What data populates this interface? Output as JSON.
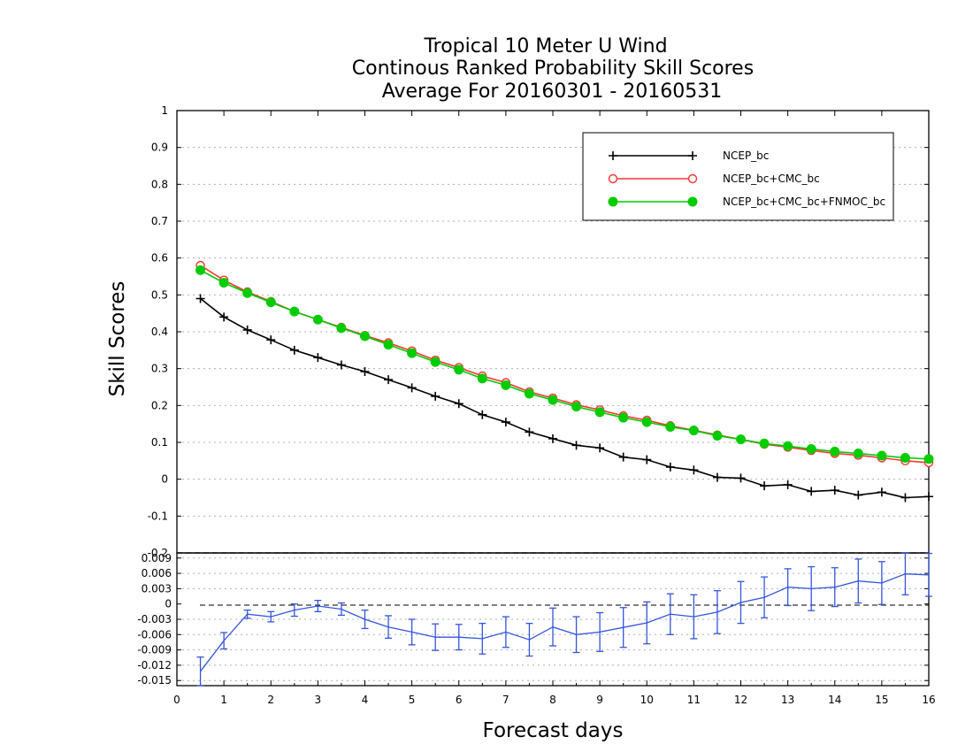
{
  "chart_data": [
    {
      "type": "line",
      "panel": "top",
      "title": [
        "Tropical 10 Meter U Wind",
        "Continous Ranked Probability Skill Scores",
        "Average For 20160301 - 20160531"
      ],
      "ylabel": "Skill Scores",
      "ylim": [
        -0.2,
        1
      ],
      "yticks": [
        "1",
        "0.9",
        "0.8",
        "0.7",
        "0.6",
        "0.5",
        "0.4",
        "0.3",
        "0.2",
        "0.1",
        "0",
        "-0.1",
        "-0.2"
      ],
      "ytick_values": [
        1,
        0.9,
        0.8,
        0.7,
        0.6,
        0.5,
        0.4,
        0.3,
        0.2,
        0.1,
        0,
        -0.1,
        -0.2
      ],
      "grid": true,
      "legend_position": "top-right",
      "x": [
        0.5,
        1,
        1.5,
        2,
        2.5,
        3,
        3.5,
        4,
        4.5,
        5,
        5.5,
        6,
        6.5,
        7,
        7.5,
        8,
        8.5,
        9,
        9.5,
        10,
        10.5,
        11,
        11.5,
        12,
        12.5,
        13,
        13.5,
        14,
        14.5,
        15,
        15.5,
        16
      ],
      "series": [
        {
          "name": "NCEP_bc",
          "color": "#000000",
          "marker": "plus",
          "values": [
            0.49,
            0.44,
            0.405,
            0.378,
            0.35,
            0.33,
            0.31,
            0.292,
            0.27,
            0.248,
            0.225,
            0.205,
            0.175,
            0.155,
            0.128,
            0.11,
            0.092,
            0.085,
            0.06,
            0.053,
            0.033,
            0.025,
            0.005,
            0.003,
            -0.018,
            -0.015,
            -0.033,
            -0.03,
            -0.043,
            -0.035,
            -0.05,
            -0.047
          ]
        },
        {
          "name": "NCEP_bc+CMC_bc",
          "color": "#ff3333",
          "marker": "open-circle",
          "values": [
            0.58,
            0.54,
            0.508,
            0.482,
            0.455,
            0.433,
            0.412,
            0.39,
            0.37,
            0.348,
            0.323,
            0.303,
            0.28,
            0.262,
            0.237,
            0.22,
            0.202,
            0.188,
            0.172,
            0.16,
            0.145,
            0.133,
            0.12,
            0.108,
            0.095,
            0.087,
            0.078,
            0.07,
            0.065,
            0.058,
            0.05,
            0.045
          ]
        },
        {
          "name": "NCEP_bc+CMC_bc+FNMOC_bc",
          "color": "#00cc00",
          "marker": "filled-circle",
          "values": [
            0.567,
            0.533,
            0.505,
            0.48,
            0.455,
            0.433,
            0.41,
            0.388,
            0.365,
            0.342,
            0.318,
            0.297,
            0.273,
            0.255,
            0.232,
            0.215,
            0.197,
            0.182,
            0.167,
            0.155,
            0.142,
            0.132,
            0.118,
            0.108,
            0.097,
            0.09,
            0.082,
            0.075,
            0.07,
            0.064,
            0.058,
            0.055
          ]
        }
      ]
    },
    {
      "type": "line",
      "panel": "bottom",
      "xlabel": "Forecast days",
      "xlim": [
        0,
        16
      ],
      "xticks": [
        "0",
        "1",
        "2",
        "3",
        "4",
        "5",
        "6",
        "7",
        "8",
        "9",
        "10",
        "11",
        "12",
        "13",
        "14",
        "15",
        "16"
      ],
      "xtick_values": [
        0,
        1,
        2,
        3,
        4,
        5,
        6,
        7,
        8,
        9,
        10,
        11,
        12,
        13,
        14,
        15,
        16
      ],
      "ylim": [
        -0.016,
        0.01
      ],
      "yticks": [
        "0.009",
        "0.006",
        "0.003",
        "0",
        "-0.003",
        "-0.006",
        "-0.009",
        "-0.012",
        "-0.015"
      ],
      "ytick_values": [
        0.009,
        0.006,
        0.003,
        0,
        -0.003,
        -0.006,
        -0.009,
        -0.012,
        -0.015
      ],
      "grid": true,
      "color": "#3355dd",
      "x": [
        0.5,
        1,
        1.5,
        2,
        2.5,
        3,
        3.5,
        4,
        4.5,
        5,
        5.5,
        6,
        6.5,
        7,
        7.5,
        8,
        8.5,
        9,
        9.5,
        10,
        10.5,
        11,
        11.5,
        12,
        12.5,
        13,
        13.5,
        14,
        14.5,
        15,
        15.5,
        16
      ],
      "values": [
        -0.0132,
        -0.0072,
        -0.002,
        -0.0025,
        -0.0012,
        -0.0004,
        -0.001,
        -0.003,
        -0.0045,
        -0.0055,
        -0.0065,
        -0.0065,
        -0.0068,
        -0.0055,
        -0.007,
        -0.0045,
        -0.006,
        -0.0055,
        -0.0046,
        -0.0037,
        -0.002,
        -0.0025,
        -0.0016,
        0.0003,
        0.0013,
        0.0033,
        0.003,
        0.0033,
        0.0045,
        0.0041,
        0.0059,
        0.0057
      ],
      "error_low": [
        -0.016,
        -0.0088,
        -0.0028,
        -0.0035,
        -0.0024,
        -0.0015,
        -0.0022,
        -0.0048,
        -0.0067,
        -0.008,
        -0.0091,
        -0.009,
        -0.0098,
        -0.0085,
        -0.0102,
        -0.0082,
        -0.0095,
        -0.0093,
        -0.0085,
        -0.0078,
        -0.006,
        -0.0068,
        -0.0058,
        -0.0038,
        -0.0027,
        -0.0003,
        -0.0013,
        -0.0005,
        0.0002,
        -0.0001,
        0.0018,
        0.0015
      ],
      "error_high": [
        -0.0104,
        -0.0056,
        -0.0012,
        -0.0015,
        0.0,
        0.0007,
        0.0002,
        -0.0012,
        -0.0023,
        -0.003,
        -0.0039,
        -0.004,
        -0.0038,
        -0.0025,
        -0.0038,
        -0.0008,
        -0.0025,
        -0.0017,
        -0.0007,
        0.0004,
        0.002,
        0.0018,
        0.0026,
        0.0044,
        0.0053,
        0.0069,
        0.0073,
        0.0071,
        0.0088,
        0.0083,
        0.01,
        0.0099
      ]
    }
  ]
}
